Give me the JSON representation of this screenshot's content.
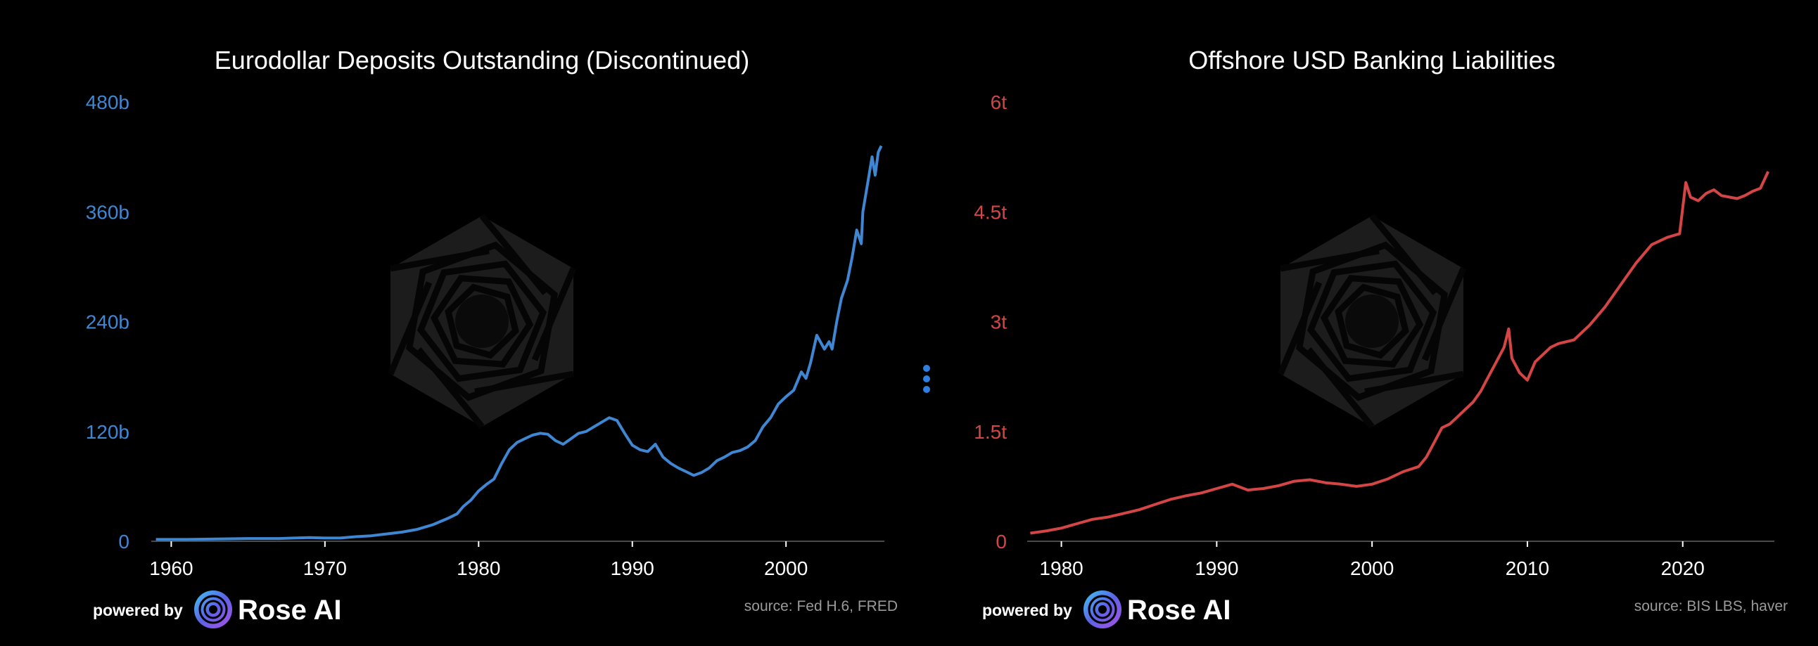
{
  "colors": {
    "background": "#000000",
    "left_series": "#3f86d3",
    "right_series": "#d44545",
    "axis": "#4a4a4a",
    "menu_dots": "#2f7fe0",
    "watermark": "#1c1c1c"
  },
  "menu": {
    "icon": "vertical-ellipsis-icon"
  },
  "branding": {
    "powered_by": "powered by",
    "name": "Rose AI",
    "logo_icon": "rose-ai-logo-icon",
    "watermark_icon": "rose-ai-watermark-icon"
  },
  "chart_data": [
    {
      "type": "line",
      "title": "Eurodollar Deposits Outstanding (Discontinued)",
      "source": "source: Fed H.6, FRED",
      "xlim": [
        1958.7,
        2006.4
      ],
      "ylim": [
        0,
        480
      ],
      "yticks": [
        0,
        120,
        240,
        360,
        480
      ],
      "ytick_labels": [
        "0",
        "120b",
        "240b",
        "360b",
        "480b"
      ],
      "xticks": [
        1960,
        1970,
        1980,
        1990,
        2000
      ],
      "xtick_labels": [
        "1960",
        "1970",
        "1980",
        "1990",
        "2000"
      ],
      "grid": false,
      "series": [
        {
          "x": [
            1959,
            1961,
            1963,
            1965,
            1967,
            1968,
            1969,
            1970,
            1971,
            1972,
            1973,
            1974,
            1975,
            1976,
            1977,
            1978,
            1978.6,
            1979,
            1979.5,
            1980,
            1980.5,
            1981,
            1981.5,
            1982,
            1982.5,
            1983,
            1983.5,
            1984,
            1984.5,
            1985,
            1985.5,
            1986,
            1986.5,
            1987,
            1987.5,
            1988,
            1988.5,
            1989,
            1989.5,
            1990,
            1990.5,
            1991,
            1991.5,
            1992,
            1992.5,
            1993,
            1993.5,
            1994,
            1994.5,
            1995,
            1995.5,
            1996,
            1996.5,
            1997,
            1997.5,
            1998,
            1998.5,
            1999,
            1999.5,
            2000,
            2000.5,
            2001,
            2001.3,
            2001.6,
            2002,
            2002.5,
            2002.8,
            2003,
            2003.3,
            2003.6,
            2004,
            2004.3,
            2004.6,
            2004.9,
            2005,
            2005.3,
            2005.6,
            2005.8,
            2006,
            2006.2
          ],
          "values": [
            2,
            2,
            2.5,
            3,
            3,
            3.5,
            4,
            3.5,
            3.5,
            5,
            6,
            8,
            10,
            13,
            18,
            25,
            30,
            38,
            45,
            55,
            62,
            68,
            85,
            100,
            108,
            112,
            116,
            118,
            117,
            110,
            106,
            112,
            118,
            120,
            125,
            130,
            135,
            132,
            118,
            105,
            100,
            98,
            106,
            92,
            85,
            80,
            76,
            72,
            75,
            80,
            88,
            92,
            97,
            99,
            103,
            110,
            125,
            135,
            150,
            158,
            165,
            185,
            178,
            195,
            225,
            210,
            218,
            210,
            240,
            265,
            285,
            310,
            340,
            325,
            360,
            390,
            420,
            400,
            425,
            432
          ]
        }
      ]
    },
    {
      "type": "line",
      "title": "Offshore USD Banking Liabilities",
      "source": "source: BIS LBS, haver",
      "xlim": [
        1977.8,
        2025.9
      ],
      "ylim": [
        0,
        6
      ],
      "yticks": [
        0,
        1.5,
        3,
        4.5,
        6
      ],
      "ytick_labels": [
        "0",
        "1.5t",
        "3t",
        "4.5t",
        "6t"
      ],
      "xticks": [
        1980,
        1990,
        2000,
        2010,
        2020
      ],
      "xtick_labels": [
        "1980",
        "1990",
        "2000",
        "2010",
        "2020"
      ],
      "grid": false,
      "series": [
        {
          "x": [
            1978,
            1979,
            1980,
            1981,
            1982,
            1983,
            1984,
            1985,
            1986,
            1987,
            1988,
            1989,
            1990,
            1991,
            1992,
            1993,
            1994,
            1995,
            1996,
            1997,
            1998,
            1999,
            2000,
            2001,
            2002,
            2003,
            2003.5,
            2004,
            2004.5,
            2005,
            2005.5,
            2006,
            2006.5,
            2007,
            2007.5,
            2008,
            2008.5,
            2008.8,
            2009,
            2009.5,
            2010,
            2010.5,
            2011,
            2011.5,
            2012,
            2013,
            2014,
            2015,
            2016,
            2017,
            2018,
            2019,
            2019.8,
            2020.2,
            2020.5,
            2021,
            2021.5,
            2022,
            2022.5,
            2023,
            2023.5,
            2024,
            2024.5,
            2025,
            2025.5
          ],
          "values": [
            0.11,
            0.14,
            0.18,
            0.24,
            0.3,
            0.33,
            0.38,
            0.43,
            0.5,
            0.57,
            0.62,
            0.66,
            0.72,
            0.78,
            0.7,
            0.72,
            0.76,
            0.82,
            0.84,
            0.8,
            0.78,
            0.75,
            0.78,
            0.85,
            0.95,
            1.02,
            1.15,
            1.35,
            1.55,
            1.6,
            1.7,
            1.8,
            1.9,
            2.05,
            2.25,
            2.45,
            2.65,
            2.9,
            2.5,
            2.3,
            2.2,
            2.45,
            2.55,
            2.65,
            2.7,
            2.75,
            2.95,
            3.2,
            3.5,
            3.8,
            4.05,
            4.15,
            4.2,
            4.9,
            4.7,
            4.65,
            4.75,
            4.8,
            4.72,
            4.7,
            4.68,
            4.72,
            4.78,
            4.82,
            5.05
          ]
        }
      ]
    }
  ]
}
